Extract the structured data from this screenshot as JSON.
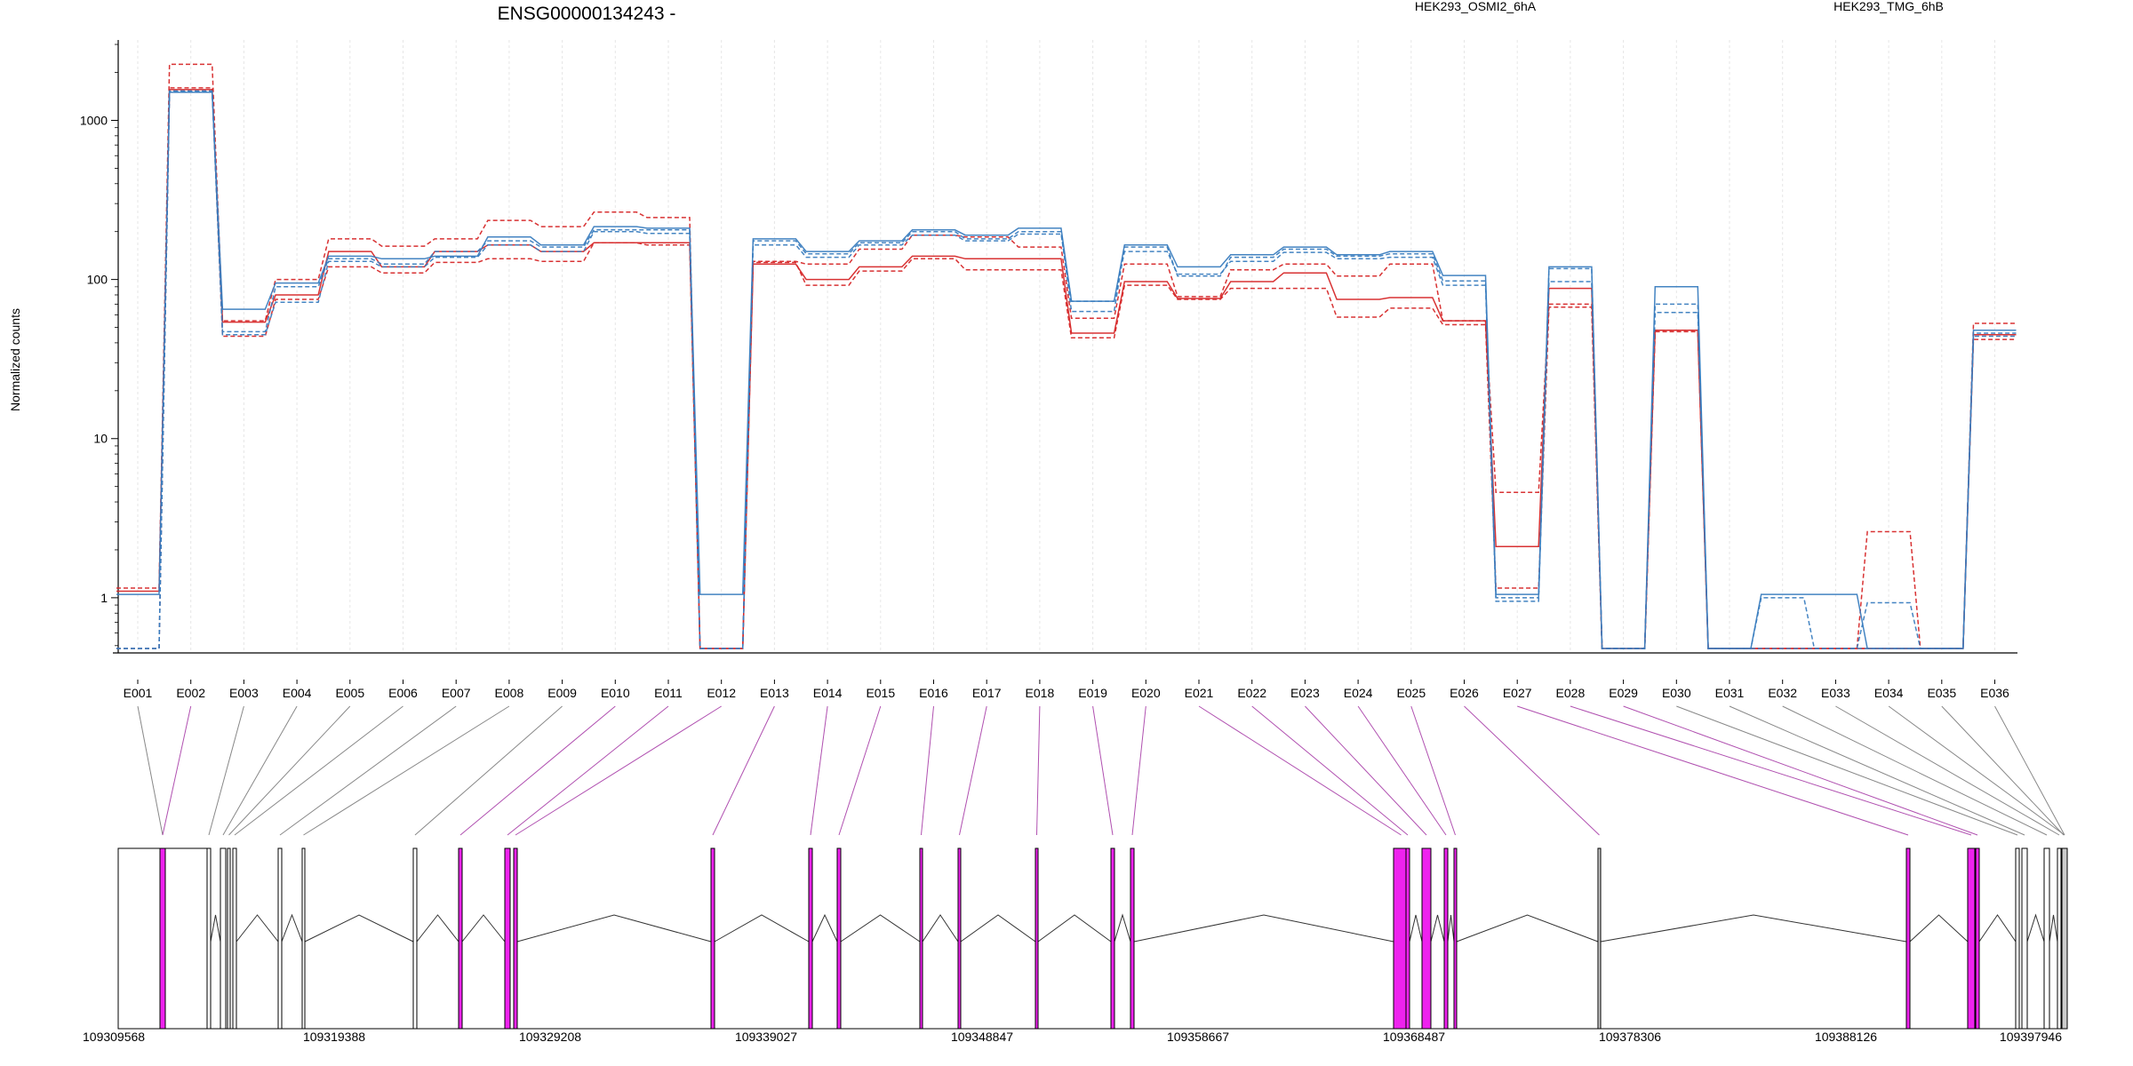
{
  "chart_data": {
    "type": "line",
    "title": "ENSG00000134243 -",
    "ylabel": "Normalized counts",
    "y_scale": "log",
    "y_ticks": [
      {
        "value": 1,
        "label": "1"
      },
      {
        "value": 10,
        "label": "10"
      },
      {
        "value": 100,
        "label": "100"
      },
      {
        "value": 1000,
        "label": "1000"
      }
    ],
    "ylim": [
      0.45,
      3200
    ],
    "legend": [
      {
        "name": "HEK293_OSMI2_6hA",
        "color": "#d62728"
      },
      {
        "name": "HEK293_TMG_6hB",
        "color": "#3a7dbf"
      }
    ],
    "categories": [
      "E001",
      "E002",
      "E003",
      "E004",
      "E005",
      "E006",
      "E007",
      "E008",
      "E009",
      "E010",
      "E011",
      "E012",
      "E013",
      "E014",
      "E015",
      "E016",
      "E017",
      "E018",
      "E019",
      "E020",
      "E021",
      "E022",
      "E023",
      "E024",
      "E025",
      "E026",
      "E027",
      "E028",
      "E029",
      "E030",
      "E031",
      "E032",
      "E033",
      "E034",
      "E035",
      "E036"
    ],
    "series": [
      {
        "group": "HEK293_OSMI2_6hA",
        "color": "#d62728",
        "style": "dashed",
        "values": [
          1.15,
          2250,
          55,
          100,
          180,
          162,
          180,
          235,
          215,
          265,
          245,
          0.48,
          130,
          125,
          155,
          190,
          185,
          160,
          57,
          125,
          78,
          115,
          125,
          105,
          125,
          55,
          4.6,
          70,
          0.48,
          48,
          0.48,
          0.48,
          0.48,
          2.6,
          0.48,
          53
        ]
      },
      {
        "group": "HEK293_OSMI2_6hA",
        "color": "#d62728",
        "style": "solid",
        "values": [
          1.1,
          1560,
          54,
          80,
          150,
          120,
          150,
          165,
          150,
          170,
          170,
          0.48,
          125,
          100,
          120,
          140,
          135,
          135,
          46,
          97,
          76,
          97,
          110,
          75,
          77,
          55,
          2.1,
          88,
          0.48,
          48,
          0.48,
          0.48,
          0.48,
          0.48,
          0.48,
          45
        ]
      },
      {
        "group": "HEK293_OSMI2_6hA",
        "color": "#d62728",
        "style": "dashed",
        "values": [
          0.48,
          1600,
          44,
          75,
          120,
          110,
          128,
          135,
          130,
          170,
          165,
          0.48,
          128,
          92,
          113,
          135,
          115,
          115,
          43,
          92,
          75,
          88,
          88,
          58,
          66,
          52,
          1.15,
          67,
          0.48,
          47,
          0.48,
          0.48,
          0.48,
          0.48,
          0.48,
          42
        ]
      },
      {
        "group": "HEK293_TMG_6hB",
        "color": "#3a7dbf",
        "style": "solid",
        "values": [
          1.05,
          1500,
          65,
          95,
          140,
          135,
          140,
          185,
          165,
          215,
          210,
          1.05,
          180,
          150,
          175,
          205,
          190,
          210,
          73,
          165,
          120,
          143,
          160,
          143,
          150,
          106,
          1.05,
          120,
          0.48,
          90,
          0.48,
          1.05,
          1.05,
          0.48,
          0.48,
          48
        ]
      },
      {
        "group": "HEK293_TMG_6hB",
        "color": "#3a7dbf",
        "style": "dashed",
        "values": [
          0.48,
          1530,
          47,
          90,
          135,
          125,
          150,
          175,
          160,
          205,
          205,
          0.48,
          175,
          145,
          170,
          200,
          180,
          200,
          63,
          160,
          105,
          138,
          155,
          140,
          145,
          98,
          1.0,
          97,
          0.48,
          70,
          0.48,
          1.0,
          0.48,
          0.93,
          0.48,
          46
        ]
      },
      {
        "group": "HEK293_TMG_6hB",
        "color": "#3a7dbf",
        "style": "dashed",
        "values": [
          0.48,
          1510,
          45,
          72,
          130,
          120,
          138,
          165,
          150,
          200,
          195,
          0.48,
          165,
          138,
          165,
          190,
          175,
          193,
          73,
          150,
          108,
          130,
          148,
          135,
          138,
          92,
          0.95,
          117,
          0.48,
          62,
          0.48,
          0.48,
          0.48,
          0.48,
          0.48,
          44
        ]
      }
    ],
    "coord_axis": {
      "ticks": [
        "109309568",
        "109319388",
        "109329208",
        "109339027",
        "109348847",
        "109358667",
        "109368487",
        "109378306",
        "109388126",
        "109397946"
      ]
    },
    "exon_highlight_color": "#ee22ee",
    "highlighted_exons": [
      "E002",
      "E010",
      "E011",
      "E012",
      "E013",
      "E014",
      "E015",
      "E016",
      "E017",
      "E018",
      "E019",
      "E020",
      "E021",
      "E022",
      "E023",
      "E024",
      "E025",
      "E026",
      "E027",
      "E028",
      "E029"
    ],
    "grey_exons": [
      "E026",
      "E036"
    ]
  }
}
